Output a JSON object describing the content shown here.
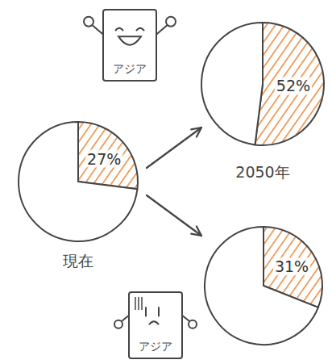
{
  "chart_data": [
    {
      "type": "pie",
      "title": "現在",
      "values": [
        27,
        73
      ],
      "value_labels": [
        "27%",
        null
      ],
      "colors": [
        "#e8873a",
        "#ffffff"
      ],
      "data_labels": true
    },
    {
      "type": "pie",
      "title": "2050年",
      "values": [
        52,
        48
      ],
      "value_labels": [
        "52%",
        null
      ],
      "colors": [
        "#e8873a",
        "#ffffff"
      ],
      "data_labels": true,
      "annotations": [
        "アジア"
      ]
    },
    {
      "type": "pie",
      "values": [
        31,
        69
      ],
      "value_labels": [
        "31%",
        null
      ],
      "colors": [
        "#e8873a",
        "#ffffff"
      ],
      "data_labels": true,
      "annotations": [
        "アジア"
      ]
    }
  ]
}
